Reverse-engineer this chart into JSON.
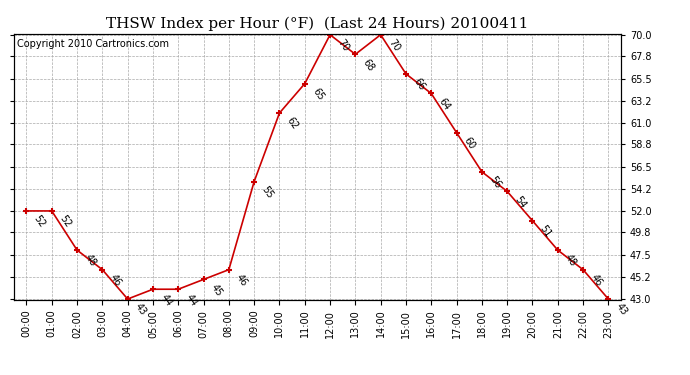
{
  "title": "THSW Index per Hour (°F)  (Last 24 Hours) 20100411",
  "copyright": "Copyright 2010 Cartronics.com",
  "hours": [
    "00:00",
    "01:00",
    "02:00",
    "03:00",
    "04:00",
    "05:00",
    "06:00",
    "07:00",
    "08:00",
    "09:00",
    "10:00",
    "11:00",
    "12:00",
    "13:00",
    "14:00",
    "15:00",
    "16:00",
    "17:00",
    "18:00",
    "19:00",
    "20:00",
    "21:00",
    "22:00",
    "23:00"
  ],
  "values": [
    52,
    52,
    48,
    46,
    43,
    44,
    44,
    45,
    46,
    55,
    62,
    65,
    70,
    68,
    70,
    66,
    64,
    60,
    56,
    54,
    51,
    48,
    46,
    43
  ],
  "line_color": "#cc0000",
  "marker_color": "#cc0000",
  "bg_color": "#ffffff",
  "grid_color": "#aaaaaa",
  "ylim_min": 43.0,
  "ylim_max": 70.0,
  "yticks": [
    43.0,
    45.2,
    47.5,
    49.8,
    52.0,
    54.2,
    56.5,
    58.8,
    61.0,
    63.2,
    65.5,
    67.8,
    70.0
  ],
  "title_fontsize": 11,
  "label_fontsize": 7,
  "copyright_fontsize": 7,
  "annot_rotation": -55,
  "annot_fontsize": 7
}
